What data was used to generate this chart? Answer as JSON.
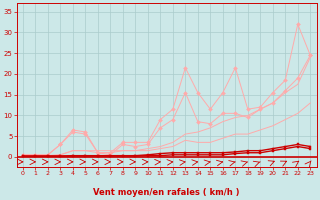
{
  "x": [
    0,
    1,
    2,
    3,
    4,
    5,
    6,
    7,
    8,
    9,
    10,
    11,
    12,
    13,
    14,
    15,
    16,
    17,
    18,
    19,
    20,
    21,
    22,
    23
  ],
  "line1": [
    0.5,
    0.5,
    0.5,
    3.0,
    6.5,
    6.0,
    1.0,
    1.0,
    3.5,
    3.5,
    3.5,
    9.0,
    11.5,
    21.5,
    15.5,
    11.5,
    15.5,
    21.5,
    11.5,
    12.0,
    15.5,
    18.5,
    32.0,
    24.5
  ],
  "line2": [
    0.5,
    0.5,
    0.5,
    3.0,
    6.0,
    5.5,
    1.0,
    0.5,
    3.0,
    2.5,
    3.0,
    7.0,
    9.0,
    15.5,
    8.5,
    8.0,
    10.5,
    10.5,
    9.5,
    11.5,
    13.0,
    16.0,
    19.0,
    24.5
  ],
  "line3": [
    0.3,
    0.3,
    0.3,
    0.5,
    1.5,
    1.5,
    1.5,
    1.5,
    1.5,
    1.5,
    2.0,
    2.5,
    3.5,
    5.5,
    6.0,
    7.0,
    8.5,
    9.5,
    10.0,
    11.5,
    13.0,
    15.5,
    17.5,
    24.0
  ],
  "line3b": [
    0.3,
    0.3,
    0.3,
    0.5,
    1.5,
    1.5,
    1.0,
    1.0,
    1.5,
    1.5,
    1.5,
    2.0,
    2.5,
    4.0,
    3.5,
    3.5,
    4.5,
    5.5,
    5.5,
    6.5,
    7.5,
    9.0,
    10.5,
    13.0
  ],
  "line4": [
    0.2,
    0.2,
    0.2,
    0.2,
    0.3,
    0.3,
    0.3,
    0.3,
    0.3,
    0.3,
    0.5,
    0.8,
    1.0,
    1.0,
    1.0,
    1.0,
    1.0,
    1.2,
    1.5,
    1.5,
    2.0,
    2.5,
    3.0,
    2.5
  ],
  "line5": [
    0.2,
    0.2,
    0.2,
    0.2,
    0.2,
    0.2,
    0.2,
    0.2,
    0.2,
    0.2,
    0.3,
    0.3,
    0.5,
    0.5,
    0.5,
    0.5,
    0.5,
    0.8,
    1.0,
    1.0,
    1.5,
    2.0,
    2.5,
    2.0
  ],
  "arrow_angles": [
    0,
    0,
    0,
    0,
    0,
    0,
    0,
    0,
    0,
    0,
    5,
    10,
    15,
    20,
    20,
    25,
    30,
    35,
    40,
    45,
    50,
    55,
    65,
    75
  ],
  "bg_color": "#cce8e8",
  "grid_color": "#aacccc",
  "color_dark_red": "#cc0000",
  "color_light_red": "#ffaaaa",
  "color_mid_red": "#ff7777",
  "xlabel": "Vent moyen/en rafales ( km/h )",
  "ylim": [
    -2.5,
    37
  ],
  "xlim": [
    -0.5,
    23.5
  ],
  "yticks": [
    0,
    5,
    10,
    15,
    20,
    25,
    30,
    35
  ],
  "xticks": [
    0,
    1,
    2,
    3,
    4,
    5,
    6,
    7,
    8,
    9,
    10,
    11,
    12,
    13,
    14,
    15,
    16,
    17,
    18,
    19,
    20,
    21,
    22,
    23
  ]
}
